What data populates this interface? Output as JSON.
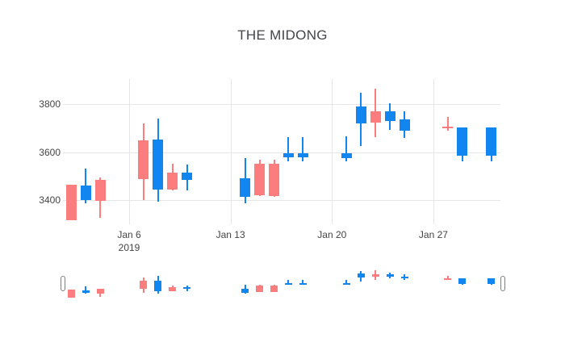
{
  "window": {
    "background": "#ffffff"
  },
  "chart_data": {
    "type": "candlestick",
    "title": "THE MIDONG",
    "xlabel": "",
    "ylabel": "",
    "legend_position": "none",
    "grid": true,
    "x_axis": {
      "tick_labels": [
        {
          "label": "Jan 6",
          "sublabel": "2019",
          "day": 6
        },
        {
          "label": "Jan 13",
          "sublabel": "",
          "day": 13
        },
        {
          "label": "Jan 20",
          "sublabel": "",
          "day": 20
        },
        {
          "label": "Jan 27",
          "sublabel": "",
          "day": 27
        }
      ]
    },
    "y_axis": {
      "tick_labels": [
        {
          "label": "3400",
          "value": 3400
        },
        {
          "label": "3600",
          "value": 3600
        },
        {
          "label": "3800",
          "value": 3800
        }
      ],
      "range": [
        3300,
        3905
      ]
    },
    "colors": {
      "increasing": "#1286f0",
      "decreasing": "#fb7d7d",
      "grid": "#e6e6e6",
      "tick_text": "#444444",
      "title_text": "#42454a"
    },
    "rangeslider": {
      "visible": true,
      "left_handle": "range-start",
      "right_handle": "range-end"
    },
    "candles": [
      {
        "date": "2019-01-02",
        "open": 3465,
        "high": 3465,
        "low": 3315,
        "close": 3315,
        "direction": "decreasing"
      },
      {
        "date": "2019-01-03",
        "open": 3400,
        "high": 3530,
        "low": 3385,
        "close": 3460,
        "direction": "increasing"
      },
      {
        "date": "2019-01-04",
        "open": 3485,
        "high": 3495,
        "low": 3325,
        "close": 3395,
        "direction": "decreasing"
      },
      {
        "date": "2019-01-07",
        "open": 3650,
        "high": 3720,
        "low": 3400,
        "close": 3487,
        "direction": "decreasing"
      },
      {
        "date": "2019-01-08",
        "open": 3444,
        "high": 3740,
        "low": 3393,
        "close": 3652,
        "direction": "increasing"
      },
      {
        "date": "2019-01-09",
        "open": 3514,
        "high": 3551,
        "low": 3440,
        "close": 3444,
        "direction": "decreasing"
      },
      {
        "date": "2019-01-10",
        "open": 3484,
        "high": 3548,
        "low": 3440,
        "close": 3514,
        "direction": "increasing"
      },
      {
        "date": "2019-01-14",
        "open": 3413,
        "high": 3575,
        "low": 3387,
        "close": 3491,
        "direction": "increasing"
      },
      {
        "date": "2019-01-15",
        "open": 3551,
        "high": 3568,
        "low": 3417,
        "close": 3420,
        "direction": "decreasing"
      },
      {
        "date": "2019-01-16",
        "open": 3551,
        "high": 3568,
        "low": 3415,
        "close": 3417,
        "direction": "decreasing"
      },
      {
        "date": "2019-01-17",
        "open": 3578,
        "high": 3662,
        "low": 3561,
        "close": 3595,
        "direction": "increasing"
      },
      {
        "date": "2019-01-18",
        "open": 3578,
        "high": 3662,
        "low": 3561,
        "close": 3595,
        "direction": "increasing"
      },
      {
        "date": "2019-01-21",
        "open": 3575,
        "high": 3665,
        "low": 3560,
        "close": 3595,
        "direction": "increasing"
      },
      {
        "date": "2019-01-22",
        "open": 3719,
        "high": 3847,
        "low": 3625,
        "close": 3790,
        "direction": "increasing"
      },
      {
        "date": "2019-01-23",
        "open": 3770,
        "high": 3864,
        "low": 3662,
        "close": 3723,
        "direction": "decreasing"
      },
      {
        "date": "2019-01-24",
        "open": 3730,
        "high": 3803,
        "low": 3692,
        "close": 3770,
        "direction": "increasing"
      },
      {
        "date": "2019-01-25",
        "open": 3690,
        "high": 3770,
        "low": 3660,
        "close": 3736,
        "direction": "increasing"
      },
      {
        "date": "2019-01-28",
        "open": 3705,
        "high": 3746,
        "low": 3688,
        "close": 3700,
        "direction": "decreasing"
      },
      {
        "date": "2019-01-29",
        "open": 3585,
        "high": 3703,
        "low": 3561,
        "close": 3703,
        "direction": "increasing"
      },
      {
        "date": "2019-01-31",
        "open": 3585,
        "high": 3703,
        "low": 3561,
        "close": 3703,
        "direction": "increasing"
      }
    ]
  }
}
